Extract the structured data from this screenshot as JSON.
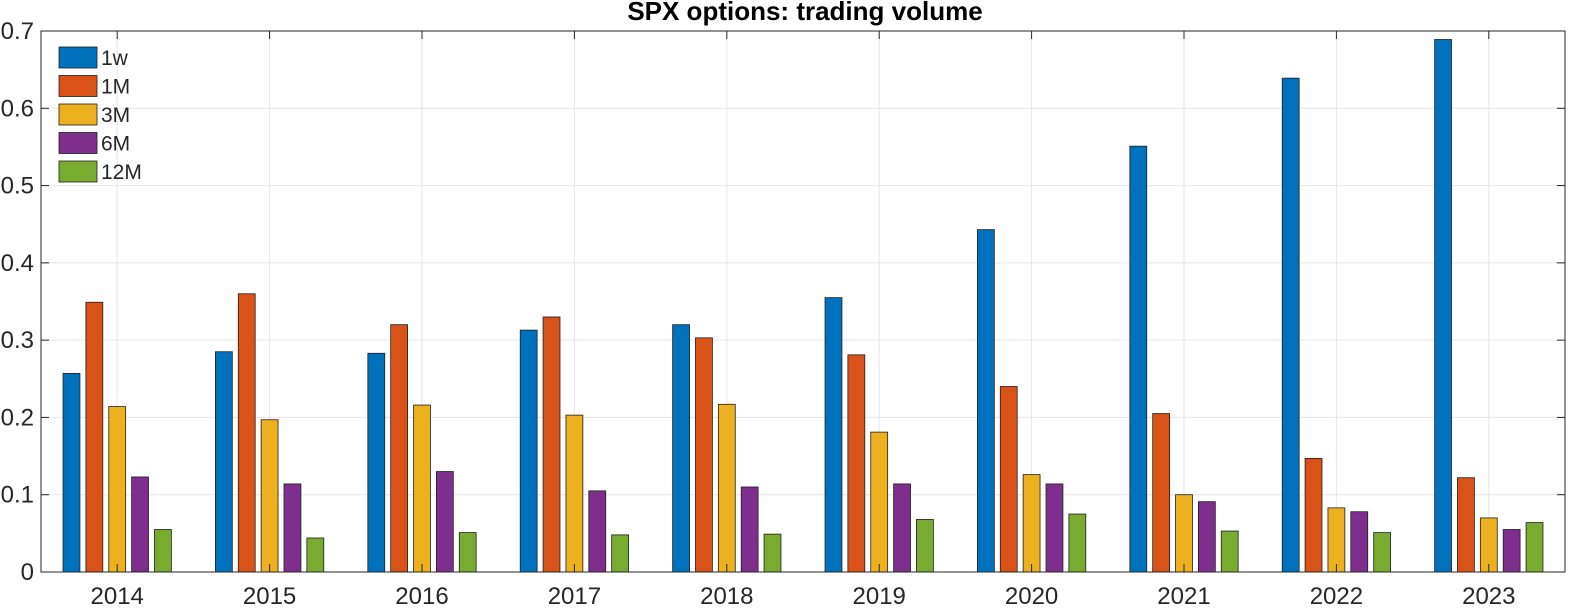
{
  "chart_data": {
    "type": "bar",
    "title": "SPX options: trading volume",
    "xlabel": "",
    "ylabel": "",
    "categories": [
      "2014",
      "2015",
      "2016",
      "2017",
      "2018",
      "2019",
      "2020",
      "2021",
      "2022",
      "2023"
    ],
    "series": [
      {
        "name": "1w",
        "color": "#0072BD",
        "values": [
          0.257,
          0.285,
          0.283,
          0.313,
          0.32,
          0.355,
          0.443,
          0.551,
          0.639,
          0.689
        ]
      },
      {
        "name": "1M",
        "color": "#D95319",
        "values": [
          0.349,
          0.36,
          0.32,
          0.33,
          0.303,
          0.281,
          0.24,
          0.205,
          0.147,
          0.122
        ]
      },
      {
        "name": "3M",
        "color": "#EDB120",
        "values": [
          0.214,
          0.197,
          0.216,
          0.203,
          0.217,
          0.181,
          0.126,
          0.1,
          0.083,
          0.07
        ]
      },
      {
        "name": "6M",
        "color": "#7E2F8E",
        "values": [
          0.123,
          0.114,
          0.13,
          0.105,
          0.11,
          0.114,
          0.114,
          0.091,
          0.078,
          0.055
        ]
      },
      {
        "name": "12M",
        "color": "#77AC30",
        "values": [
          0.055,
          0.044,
          0.051,
          0.048,
          0.049,
          0.068,
          0.075,
          0.053,
          0.051,
          0.064
        ]
      }
    ],
    "ylim": [
      0,
      0.7
    ],
    "yticks": [
      0,
      0.1,
      0.2,
      0.3,
      0.4,
      0.5,
      0.6,
      0.7
    ],
    "ytick_labels": [
      "0",
      "0.1",
      "0.2",
      "0.3",
      "0.4",
      "0.5",
      "0.6",
      "0.7"
    ],
    "grid": true,
    "legend_position": "top-left"
  }
}
